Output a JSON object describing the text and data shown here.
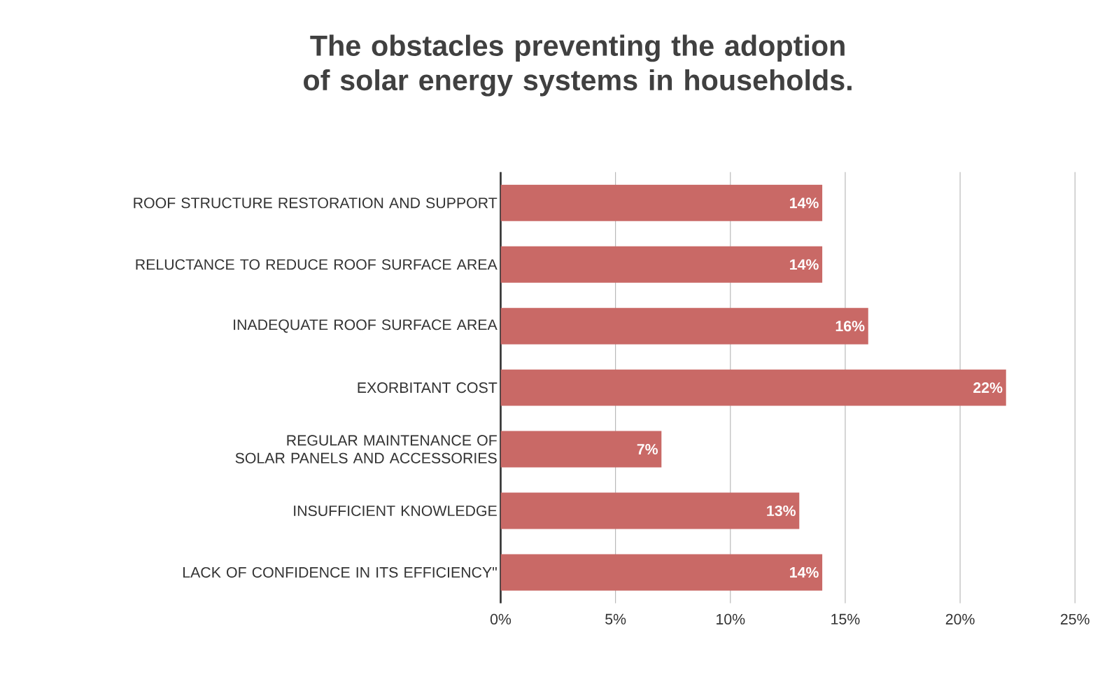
{
  "chart_data": {
    "type": "bar",
    "orientation": "horizontal",
    "title": "The obstacles preventing the adoption of solar energy systems in households.",
    "categories": [
      "ROOF STRUCTURE RESTORATION AND SUPPORT",
      "RELUCTANCE TO REDUCE ROOF SURFACE AREA",
      "INADEQUATE ROOF SURFACE AREA",
      "EXORBITANT COST",
      "REGULAR MAINTENANCE OF SOLAR PANELS AND ACCESSORIES",
      "INSUFFICIENT KNOWLEDGE",
      "LACK OF CONFIDENCE IN ITS EFFICIENCY\""
    ],
    "values": [
      14,
      14,
      16,
      22,
      7,
      13,
      14
    ],
    "value_labels": [
      "14%",
      "14%",
      "16%",
      "22%",
      "7%",
      "13%",
      "14%"
    ],
    "color": "#c96966",
    "xlim": [
      0,
      25
    ],
    "xticks": [
      {
        "value": 0,
        "label": "0%"
      },
      {
        "value": 5,
        "label": "5%"
      },
      {
        "value": 10,
        "label": "10%"
      },
      {
        "value": 15,
        "label": "15%"
      },
      {
        "value": 20,
        "label": "20%"
      },
      {
        "value": 25,
        "label": "25%"
      }
    ],
    "grid": "x"
  }
}
